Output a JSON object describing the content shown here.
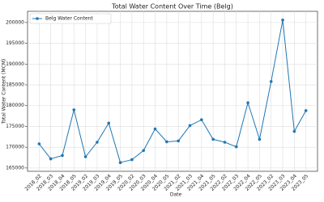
{
  "chart_data": {
    "type": "line",
    "title": "Total Water Content Over Time (Belg)",
    "xlabel": "Date",
    "ylabel": "Total Water Content (MCM)",
    "categories": [
      "2018_02",
      "2018_03",
      "2018_04",
      "2018_05",
      "2019_02",
      "2019_03",
      "2019_04",
      "2019_05",
      "2020_02",
      "2020_03",
      "2020_04",
      "2020_05",
      "2021_02",
      "2021_03",
      "2021_04",
      "2021_05",
      "2022_02",
      "2022_03",
      "2022_04",
      "2022_05",
      "2023_02",
      "2023_03",
      "2023_04",
      "2023_05"
    ],
    "series": [
      {
        "name": "Belg Water Content",
        "color": "#1f77b4",
        "values": [
          170800,
          167200,
          168000,
          179000,
          167700,
          171200,
          175800,
          166300,
          167000,
          169200,
          174400,
          171300,
          171500,
          175200,
          176600,
          171900,
          171200,
          170100,
          180700,
          171900,
          185800,
          200600,
          173800,
          178800
        ]
      }
    ],
    "ylim": [
      164200,
      202700
    ],
    "yticks": [
      165000,
      170000,
      175000,
      180000,
      185000,
      190000,
      195000,
      200000
    ],
    "grid": true,
    "legend": "upper-left"
  }
}
